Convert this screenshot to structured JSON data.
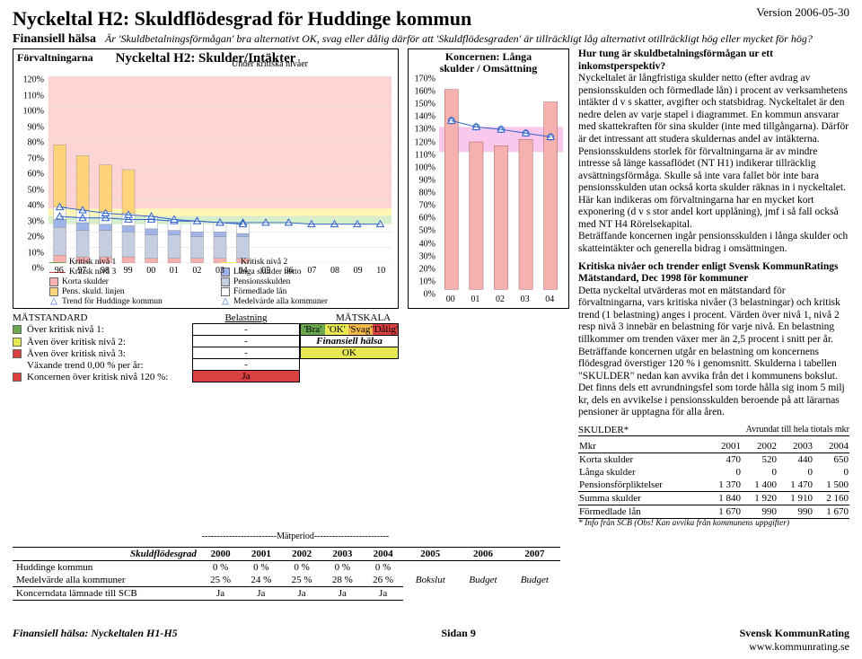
{
  "version": "Version 2006-05-30",
  "title": "Nyckeltal H2: Skuldflödesgrad för Huddinge kommun",
  "fh_label": "Finansiell hälsa",
  "subtitle_italic": "Är 'Skuldbetalningsförmågan' bra alternativt OK, svag eller dålig därför att 'Skuldflödesgraden' är tillräckligt låg alternativt otillräckligt hög eller mycket för hög?",
  "chart_left": {
    "corner_label": "Förvaltningarna",
    "title": "Nyckeltal H2: Skulder/Intäkter",
    "under_label": "Under kritiska nivåer",
    "y_ticks": [
      "0%",
      "10%",
      "20%",
      "30%",
      "40%",
      "50%",
      "60%",
      "70%",
      "80%",
      "90%",
      "100%",
      "110%",
      "120%"
    ],
    "y_max": 120,
    "x_labels": [
      "96",
      "97",
      "98",
      "99",
      "00",
      "01",
      "02",
      "03",
      "04",
      "05",
      "06",
      "07",
      "08",
      "09",
      "10"
    ],
    "band_colors": {
      "green": "#b7e3a0",
      "yellow": "#fff07a",
      "red": "#ffb0b0"
    },
    "bands": [
      {
        "from": 25,
        "to": 30,
        "color": "#b7e3a0"
      },
      {
        "from": 30,
        "to": 35,
        "color": "#fff07a"
      },
      {
        "from": 35,
        "to": 120,
        "color": "#ffb0b0"
      }
    ],
    "stacks": {
      "years": [
        "96",
        "97",
        "98",
        "99",
        "00",
        "01",
        "02",
        "03",
        "04"
      ],
      "korta": [
        5,
        4,
        4,
        4,
        3,
        3,
        3,
        3,
        3
      ],
      "pensions": [
        18,
        17,
        17,
        16,
        15,
        15,
        14,
        14,
        14
      ],
      "langa": [
        5,
        5,
        4,
        4,
        4,
        3,
        3,
        3,
        2
      ],
      "formedlade": [
        8,
        8,
        8,
        8,
        8,
        7,
        7,
        6,
        6
      ],
      "pens_linjen": [
        40,
        35,
        30,
        28,
        0,
        0,
        0,
        0,
        0
      ]
    },
    "colors": {
      "korta": "#f7b0b0",
      "pensions": "#c5cde0",
      "langa": "#9fb4e8",
      "formedlade": "#ffffff",
      "pens_linjen": "#ffd37a"
    },
    "trend_values": [
      36,
      34,
      32,
      31,
      30,
      28,
      27,
      26,
      25
    ],
    "medel_values": [
      30,
      29,
      29,
      28,
      28,
      27,
      27,
      26,
      26,
      26,
      26,
      25,
      25,
      25,
      25
    ],
    "trend_color": "#2f62c9",
    "medel_color": "#2f62c9",
    "legend": [
      {
        "type": "line",
        "color": "#6aa84f",
        "label": "Kritisk nivå 1"
      },
      {
        "type": "line",
        "color": "#e8e854",
        "label": "Kritisk nivå 2"
      },
      {
        "type": "line",
        "color": "#d94040",
        "label": "Kritisk nivå 3"
      },
      {
        "type": "sq",
        "color": "#9fb4e8",
        "label": "Långa skulder netto"
      },
      {
        "type": "sq",
        "color": "#f7b0b0",
        "label": "Korta skulder"
      },
      {
        "type": "sq",
        "color": "#c5cde0",
        "label": "Pensionsskulden"
      },
      {
        "type": "sq",
        "color": "#ffd37a",
        "label": "Pens. skuld. linjen"
      },
      {
        "type": "sq",
        "color": "#ffffff",
        "label": "Förmedlade lån"
      },
      {
        "type": "mk",
        "mk": "△",
        "color": "#2f62c9",
        "label": "Trend för Huddinge kommun"
      },
      {
        "type": "mk",
        "mk": "△",
        "color": "#2f62c9",
        "label": "Medelvärde alla kommuner"
      }
    ]
  },
  "chart_mid": {
    "title_l1": "Koncernen: Långa",
    "title_l2": "skulder / Omsättning",
    "y_ticks": [
      "0%",
      "10%",
      "20%",
      "30%",
      "40%",
      "50%",
      "60%",
      "70%",
      "80%",
      "90%",
      "100%",
      "110%",
      "120%",
      "130%",
      "140%",
      "150%",
      "160%",
      "170%"
    ],
    "y_max": 170,
    "x_labels": [
      "00",
      "01",
      "02",
      "03",
      "04"
    ],
    "band": {
      "from": 110,
      "to": 130,
      "color": "#f7a4e0"
    },
    "bar_color": "#f5b0b0",
    "values": [
      160,
      118,
      115,
      120,
      150
    ],
    "line_values": [
      135,
      130,
      128,
      125,
      122
    ],
    "line_color": "#2f62c9"
  },
  "matstandard": {
    "head_left": "MÄTSTANDARD",
    "head_bel": "Belastning",
    "head_skala": "MÄTSKALA",
    "rows": [
      {
        "sq": "#6aa84f",
        "label": "Över kritisk nivå 1:",
        "bel": "-",
        "skala": [
          "'Bra'",
          "'OK'",
          "'Svag'",
          "'Dålig'"
        ],
        "skala_colors": [
          "#6aa84f",
          "#e8e854",
          "#f2b84b",
          "#d94040"
        ]
      },
      {
        "sq": "#e8e854",
        "label": "Även över kritisk nivå 2:",
        "bel": "-",
        "skala_full": "Finansiell hälsa",
        "skala_full_bg": "#ffffff"
      },
      {
        "sq": "#d94040",
        "label": "Även över kritisk nivå 3:",
        "bel": "-",
        "skala_full": "OK",
        "skala_full_bg": "#e8e854"
      }
    ],
    "row_vax": {
      "label": "Växande trend 0,00 % per år:",
      "bel": "-"
    },
    "row_konc": {
      "sq": "#d94040",
      "label": "Koncernen över kritisk nivå 120 %:",
      "bel": "Ja",
      "bel_bg": "#d94040"
    }
  },
  "table_bottom": {
    "matperiod_label": "-------------------------Mätperiod-------------------------",
    "head": [
      "Skuldflödesgrad",
      "2000",
      "2001",
      "2002",
      "2003",
      "2004",
      "2005",
      "2006",
      "2007"
    ],
    "rows": [
      {
        "label": "Huddinge kommun",
        "cells": [
          "0 %",
          "0 %",
          "0 %",
          "0 %",
          "0 %",
          null,
          null,
          null
        ]
      },
      {
        "label": "Medelvärde alla kommuner",
        "cells": [
          "25 %",
          "24 %",
          "25 %",
          "28 %",
          "26 %",
          "Bokslut",
          "Budget",
          "Budget"
        ],
        "italic_tail": true
      },
      {
        "label": "Koncerndata lämnade till SCB",
        "cells": [
          "Ja",
          "Ja",
          "Ja",
          "Ja",
          "Ja",
          null,
          null,
          null
        ]
      }
    ]
  },
  "right_text": {
    "heading": "Hur tung är skuldbetalningsförmågan ur ett inkomstperspektiv?",
    "para1": "Nyckeltalet är långfristiga skulder netto (efter avdrag av pensionsskulden och förmedlade lån) i procent av verksamhetens intäkter d v s skatter, avgifter och statsbidrag. Nyckeltalet är den nedre delen av varje stapel i diagrammet. En kommun ansvarar med skattekraften för sina skulder (inte med tillgångarna). Därför är det intressant att studera skuldernas andel av intäkterna. Pensionsskuldens storlek för förvaltningarna är av mindre intresse så länge kassaflödet (NT H1)  indikerar tillräcklig avsättningsförmåga. Skulle så inte vara fallet bör inte bara pensionsskulden utan också korta skulder räknas in i nyckeltalet. Här kan indikeras om förvaltningarna har en mycket kort exponering (d v s stor andel kort upplåning), jmf i så fall också med NT H4 Rörelsekapital.",
    "para1b": "Beträffande koncernen ingår pensionsskulden i långa skulder och skatteintäkter och generella bidrag i omsättningen.",
    "heading2": "Kritiska nivåer och trender enligt Svensk KommunRatings Mätstandard, Dec 1998 för kommuner",
    "para2": "Detta nyckeltal utvärderas mot en mätstandard för förvaltningarna, vars kritiska nivåer (3 belastningar) och kritisk trend (1 belastning) anges i procent. Värden över nivå 1, nivå 2 resp nivå 3 innebär en belastning för varje nivå. En belastning tillkommer om trenden växer mer än 2,5 procent i snitt per år. Beträffande koncernen utgår en belastning om koncernens flödesgrad överstiger 120 % i genomsnitt. Skulderna i tabellen \"SKULDER\" nedan kan avvika från det i kommunens bokslut. Det finns dels ett avrundningsfel som torde hålla sig inom 5 milj kr, dels en avvikelse i pensionsskulden beroende på att lärarnas pensioner är upptagna för alla åren."
  },
  "skulder": {
    "title": "SKULDER*",
    "subtitle": "Avrundat till hela tiotals mkr",
    "head": [
      "Mkr",
      "2001",
      "2002",
      "2003",
      "2004"
    ],
    "rows": [
      [
        "Korta skulder",
        "470",
        "520",
        "440",
        "650"
      ],
      [
        "Långa skulder",
        "0",
        "0",
        "0",
        "0"
      ],
      [
        "Pensionsförpliktelser",
        "1 370",
        "1 400",
        "1 470",
        "1 500"
      ]
    ],
    "sum": [
      "Summa skulder",
      "1 840",
      "1 920",
      "1 910",
      "2 160"
    ],
    "forme": [
      "Förmedlade lån",
      "1 670",
      "990",
      "990",
      "1 670"
    ],
    "note": "* Info från SCB (Obs! Kan avvika från kommunens uppgifter)"
  },
  "footer": {
    "left": "Finansiell hälsa: Nyckeltalen H1-H5",
    "mid": "Sidan 9",
    "r1": "Svensk KommunRating",
    "r2": "www.kommunrating.se"
  }
}
